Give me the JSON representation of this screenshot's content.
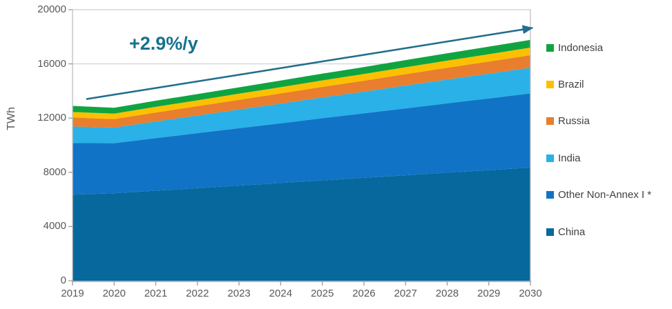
{
  "chart_data": {
    "type": "area",
    "stacked": true,
    "ylabel": "TWh",
    "x": [
      2019,
      2020,
      2021,
      2022,
      2023,
      2024,
      2025,
      2026,
      2027,
      2028,
      2029,
      2030
    ],
    "series": [
      {
        "name": "China",
        "color": "#06689c",
        "values": [
          6350,
          6450,
          6640,
          6830,
          7020,
          7210,
          7400,
          7590,
          7780,
          7970,
          8160,
          8350
        ]
      },
      {
        "name": "Other Non-Annex I *",
        "color": "#1173c6",
        "values": [
          3810,
          3700,
          3880,
          4060,
          4230,
          4410,
          4590,
          4760,
          4940,
          5120,
          5290,
          5470
        ]
      },
      {
        "name": "India",
        "color": "#29b1e8",
        "values": [
          1220,
          1150,
          1230,
          1300,
          1380,
          1450,
          1530,
          1600,
          1680,
          1750,
          1830,
          1900
        ]
      },
      {
        "name": "Russia",
        "color": "#e87e2e",
        "values": [
          660,
          630,
          660,
          690,
          720,
          750,
          780,
          810,
          840,
          870,
          890,
          920
        ]
      },
      {
        "name": "Brazil",
        "color": "#fdc000",
        "values": [
          410,
          400,
          420,
          430,
          450,
          460,
          480,
          490,
          510,
          530,
          540,
          560
        ]
      },
      {
        "name": "Indonesia",
        "color": "#10a441",
        "values": [
          450,
          430,
          450,
          460,
          470,
          490,
          500,
          510,
          530,
          540,
          560,
          570
        ]
      }
    ],
    "legend_order": [
      "Indonesia",
      "Brazil",
      "Russia",
      "India",
      "Other Non-Annex I *",
      "China"
    ],
    "y_ticks": [
      0,
      4000,
      8000,
      12000,
      16000,
      20000
    ],
    "ylim": [
      0,
      20000
    ],
    "grid": true,
    "legend_position": "right",
    "annotation": {
      "text": "+2.9%/y",
      "color": "#17718f"
    },
    "trend_arrow": {
      "color": "#236e8e",
      "from_year": 2019.33,
      "from_value": 13400,
      "to_year": 2030.05,
      "to_value": 18650
    },
    "colors": {
      "gridline": "#d6d6d6",
      "axis_line": "#c3c3c3",
      "bottom_axis": "#9a9a9a",
      "tick": "#9a9a9a",
      "axis_text": "#595959",
      "legend_text": "#404040"
    }
  }
}
